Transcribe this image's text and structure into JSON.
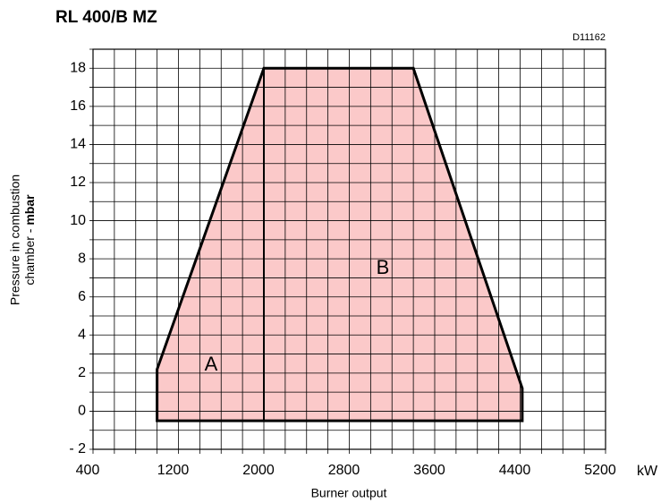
{
  "chart_data": {
    "type": "area",
    "title": "RL 400/B MZ",
    "code": "D11162",
    "xlabel": "Burner output",
    "x_unit": "kW",
    "ylabel": {
      "line1": "Pressure in combustion",
      "line2": "chamber - ",
      "unit": "mbar"
    },
    "series": [
      {
        "name": "A",
        "color": "#fbc9c9",
        "x": [
          1000,
          1000,
          2000,
          3400,
          4420,
          4420
        ],
        "values": [
          -0.5,
          2.2,
          18,
          18,
          1.2,
          -0.5
        ]
      },
      {
        "name": "B",
        "color": "#000000",
        "x": [
          2000,
          2000
        ],
        "values": [
          -0.5,
          18
        ]
      }
    ],
    "xlim": [
      400,
      5200
    ],
    "xticks": [
      400,
      1200,
      2000,
      2800,
      3600,
      4400,
      5200
    ],
    "xgrid": [
      400,
      600,
      800,
      1000,
      1200,
      1400,
      1600,
      1800,
      2000,
      2200,
      2400,
      2600,
      2800,
      3000,
      3200,
      3400,
      3600,
      3800,
      4000,
      4200,
      4400,
      4600,
      4800,
      5000,
      5200
    ],
    "ylim": [
      -2,
      19
    ],
    "yticks": [
      {
        "value": -2,
        "label": "- 2"
      },
      0,
      2,
      4,
      6,
      8,
      10,
      12,
      14,
      16,
      18
    ],
    "ygrid": [
      -2,
      -1,
      0,
      1,
      2,
      3,
      4,
      5,
      6,
      7,
      8,
      9,
      10,
      11,
      12,
      13,
      14,
      15,
      16,
      17,
      18,
      19
    ],
    "grid": true
  }
}
